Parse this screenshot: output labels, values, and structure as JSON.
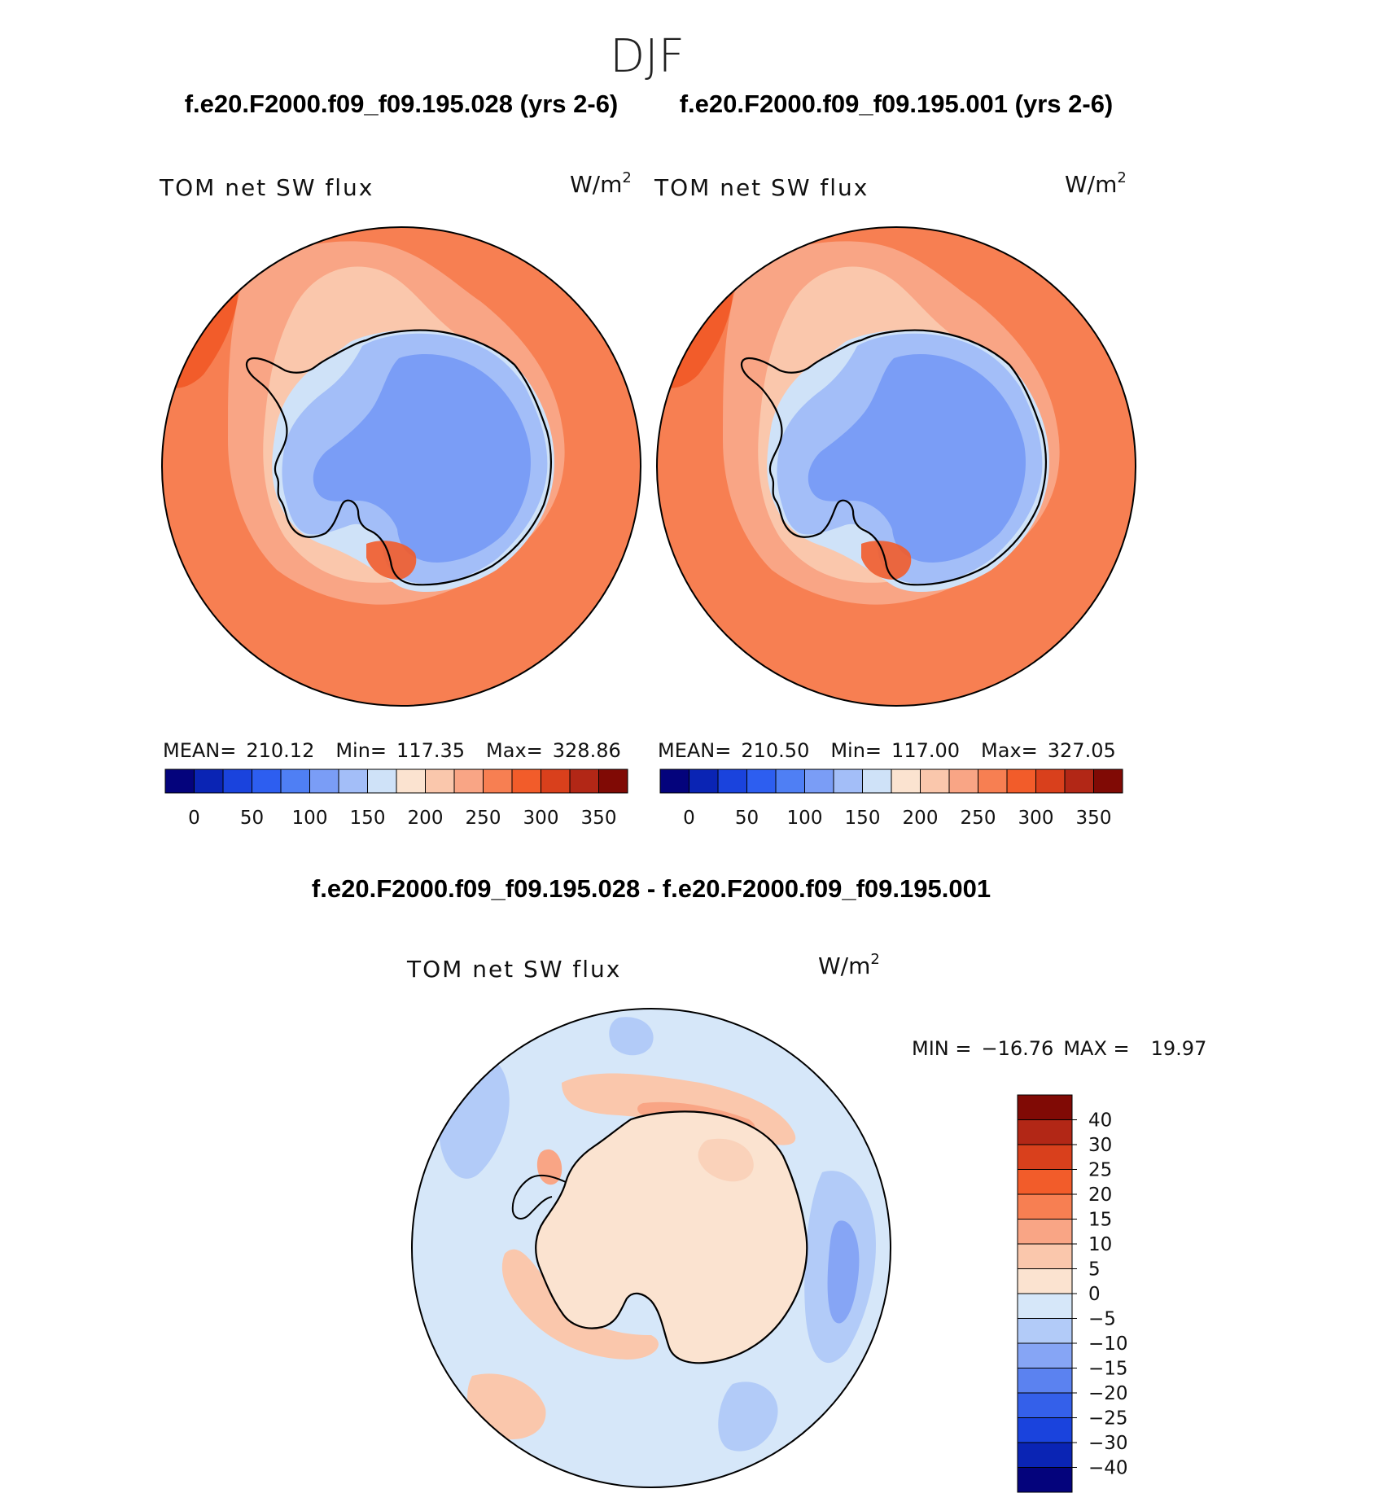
{
  "season": "DJF",
  "run_titles": {
    "left": "f.e20.F2000.f09_f09.195.028 (yrs 2-6)",
    "right": "f.e20.F2000.f09_f09.195.001 (yrs 2-6)"
  },
  "diff_title": "f.e20.F2000.f09_f09.195.028 - f.e20.F2000.f09_f09.195.001",
  "chart_data": [
    {
      "type": "heatmap",
      "projection": "south-polar stereographic",
      "variable": "TOM net SW flux",
      "units_base": "W/m",
      "units_exp": "2",
      "stats": {
        "mean_label": "MEAN=",
        "mean": "210.12",
        "min_label": "Min=",
        "min": "117.35",
        "max_label": "Max=",
        "max": "328.86"
      },
      "colorbar": {
        "levels": [
          "0",
          "50",
          "100",
          "150",
          "200",
          "250",
          "300",
          "350"
        ],
        "colors": [
          "#04037c",
          "#0a24b4",
          "#1a43dd",
          "#2d5ef0",
          "#4f7ff4",
          "#7a9df6",
          "#a3bef8",
          "#cfe2f8",
          "#fbe3d0",
          "#fac7ac",
          "#f9a585",
          "#f77f52",
          "#f25c2a",
          "#d9401c",
          "#b22716",
          "#800a05"
        ]
      },
      "regions": {
        "ocean_base": "#f77f52",
        "mid_ring": "#f9a585",
        "pale_ring": "#fac7ac",
        "ice_margin": "#cfe2f8",
        "continent": "#a3bef8",
        "interior": "#7a9df6",
        "hotspot": "#f25c2a"
      }
    },
    {
      "type": "heatmap",
      "projection": "south-polar stereographic",
      "variable": "TOM net SW flux",
      "units_base": "W/m",
      "units_exp": "2",
      "stats": {
        "mean_label": "MEAN=",
        "mean": "210.50",
        "min_label": "Min=",
        "min": "117.00",
        "max_label": "Max=",
        "max": "327.05"
      },
      "colorbar": {
        "levels": [
          "0",
          "50",
          "100",
          "150",
          "200",
          "250",
          "300",
          "350"
        ],
        "colors": [
          "#04037c",
          "#0a24b4",
          "#1a43dd",
          "#2d5ef0",
          "#4f7ff4",
          "#7a9df6",
          "#a3bef8",
          "#cfe2f8",
          "#fbe3d0",
          "#fac7ac",
          "#f9a585",
          "#f77f52",
          "#f25c2a",
          "#d9401c",
          "#b22716",
          "#800a05"
        ]
      },
      "regions": {
        "ocean_base": "#f77f52",
        "mid_ring": "#f9a585",
        "pale_ring": "#fac7ac",
        "ice_margin": "#cfe2f8",
        "continent": "#a3bef8",
        "interior": "#7a9df6",
        "hotspot": "#f25c2a"
      }
    },
    {
      "type": "heatmap",
      "projection": "south-polar stereographic",
      "variable": "TOM net SW flux",
      "units_base": "W/m",
      "units_exp": "2",
      "stats_text": {
        "min_label": "MIN =",
        "min": "−16.76",
        "max_label": "MAX =",
        "max": "19.97"
      },
      "colorbar": {
        "orientation": "vertical",
        "levels": [
          "40",
          "30",
          "25",
          "20",
          "15",
          "10",
          "5",
          "0",
          "−5",
          "−10",
          "−15",
          "−20",
          "−25",
          "−30",
          "−40"
        ],
        "colors": [
          "#800a05",
          "#b22716",
          "#d9401c",
          "#f25c2a",
          "#f77f52",
          "#f9a585",
          "#fac7ac",
          "#fbe3d0",
          "#d6e7f9",
          "#b2cbf8",
          "#86a5f5",
          "#5b82f0",
          "#3460ea",
          "#1a43dd",
          "#0a24b4",
          "#04037c"
        ]
      },
      "regions": {
        "ocean_base": "#d6e7f9",
        "continent": "#fbe3d0",
        "warm_patch": "#fac7ac",
        "strong_warm": "#f9a585",
        "cool_patch": "#b2cbf8",
        "strong_cool": "#86a5f5"
      }
    }
  ]
}
